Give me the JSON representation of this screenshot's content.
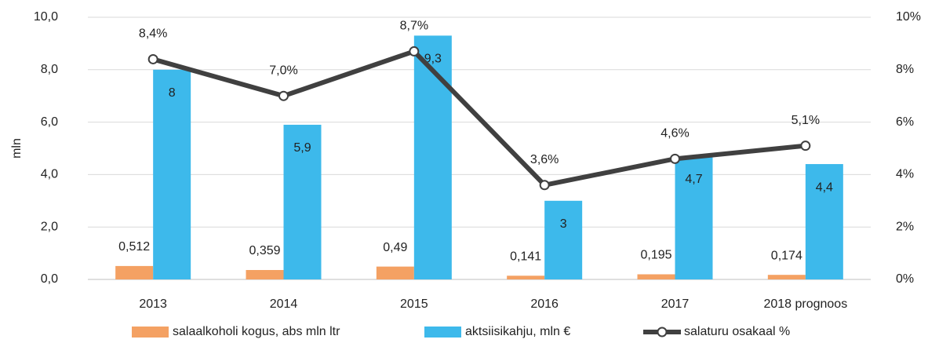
{
  "chart_data": {
    "type": "bar",
    "y_label": "mln",
    "categories": [
      "2013",
      "2014",
      "2015",
      "2016",
      "2017",
      "2018 prognoos"
    ],
    "series": [
      {
        "name": "salaalkoholi kogus, abs mln ltr",
        "color": "#f4a163",
        "values": [
          0.512,
          0.359,
          0.49,
          0.141,
          0.195,
          0.174
        ],
        "value_labels": [
          "0,512",
          "0,359",
          "0,49",
          "0,141",
          "0,195",
          "0,174"
        ]
      },
      {
        "name": "aktsiisikahju, mln €",
        "color": "#3db9eb",
        "values": [
          8,
          5.9,
          9.3,
          3,
          4.7,
          4.4
        ],
        "value_labels": [
          "8",
          "5,9",
          "9,3",
          "3",
          "4,7",
          "4,4"
        ]
      },
      {
        "name": "salaturu osakaal %",
        "color": "#404040",
        "type": "line",
        "axis": "y2",
        "values": [
          8.4,
          7.0,
          8.7,
          3.6,
          4.6,
          5.1
        ],
        "value_labels": [
          "8,4%",
          "7,0%",
          "8,7%",
          "3,6%",
          "4,6%",
          "5,1%"
        ]
      }
    ],
    "ylim": [
      0,
      10
    ],
    "yticks": [
      {
        "value": 0,
        "label": "0,0"
      },
      {
        "value": 2,
        "label": "2,0"
      },
      {
        "value": 4,
        "label": "4,0"
      },
      {
        "value": 6,
        "label": "6,0"
      },
      {
        "value": 8,
        "label": "8,0"
      },
      {
        "value": 10,
        "label": "10,0"
      }
    ],
    "y2lim": [
      0,
      10
    ],
    "y2ticks": [
      {
        "value": 0,
        "label": "0%"
      },
      {
        "value": 2,
        "label": "2%"
      },
      {
        "value": 4,
        "label": "4%"
      },
      {
        "value": 6,
        "label": "6%"
      },
      {
        "value": 8,
        "label": "8%"
      },
      {
        "value": 10,
        "label": "10%"
      }
    ],
    "grid": true,
    "legend": "bottom"
  }
}
